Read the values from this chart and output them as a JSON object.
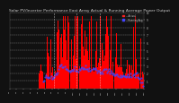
{
  "title": "Solar PV/Inverter Performance East Array Actual & Running Average Power Output",
  "title_fontsize": 3.2,
  "bg_color": "#111111",
  "plot_bg": "#111111",
  "bar_color": "#ff0000",
  "avg_color": "#4444ff",
  "grid_color": "#444444",
  "text_color": "#cccccc",
  "ylim": [
    0,
    1000
  ],
  "ytick_labels": [
    "10.",
    "9.0",
    "8.0",
    "7.0",
    "6.0",
    "5.0",
    "4.0",
    "3.0",
    "2.0",
    "1.0"
  ],
  "legend_entries": [
    "-- Actual",
    "-- Running Avg"
  ],
  "legend_colors_title": [
    "#ff2222",
    "#4444ff"
  ],
  "n_bars": 560,
  "seed": 7
}
